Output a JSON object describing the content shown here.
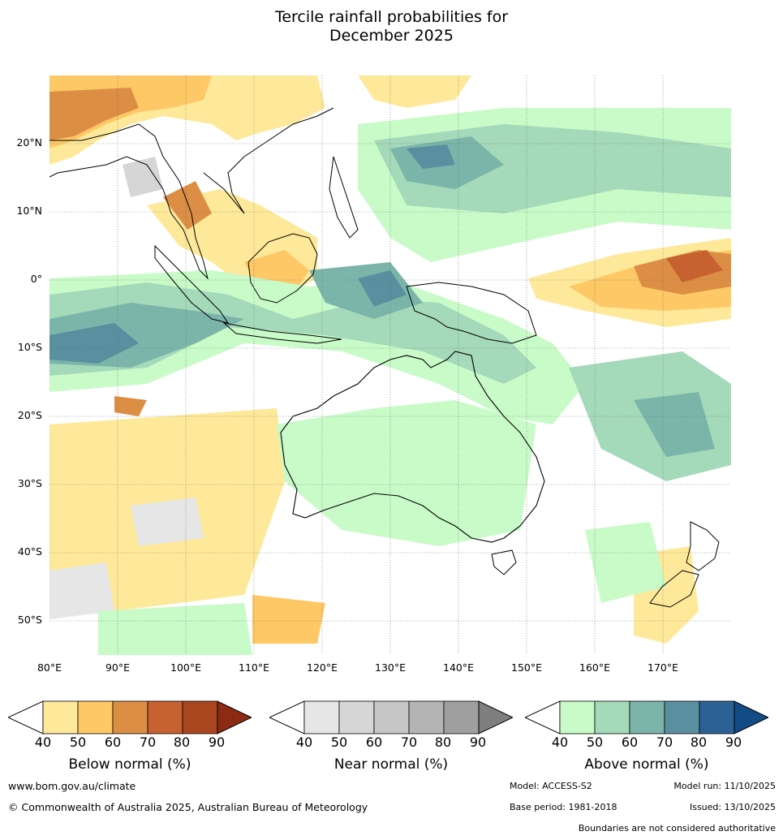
{
  "title_line1": "Tercile rainfall probabilities for",
  "title_line2": "December 2025",
  "lat_labels": [
    "20°N",
    "10°N",
    "0°",
    "10°S",
    "20°S",
    "30°S",
    "40°S",
    "50°S"
  ],
  "lon_labels": [
    "80°E",
    "90°E",
    "100°E",
    "110°E",
    "120°E",
    "130°E",
    "140°E",
    "150°E",
    "160°E",
    "170°E"
  ],
  "colorbars": [
    {
      "label": "Below normal (%)",
      "ticks": [
        "40",
        "50",
        "60",
        "70",
        "80",
        "90"
      ],
      "under": "#ffffff",
      "colors": [
        "#fee99a",
        "#fdc865",
        "#dc8e45",
        "#c7612f",
        "#a9451f"
      ],
      "over": "#8c2a14"
    },
    {
      "label": "Near normal (%)",
      "ticks": [
        "40",
        "50",
        "60",
        "70",
        "80",
        "90"
      ],
      "under": "#ffffff",
      "colors": [
        "#e6e6e6",
        "#d6d6d6",
        "#c6c6c6",
        "#b4b4b4",
        "#9f9f9f"
      ],
      "over": "#7f7f7f"
    },
    {
      "label": "Above normal (%)",
      "ticks": [
        "40",
        "50",
        "60",
        "70",
        "80",
        "90"
      ],
      "under": "#ffffff",
      "colors": [
        "#c8fbc8",
        "#a4d9b9",
        "#7bb5aa",
        "#598f9f",
        "#2c6196"
      ],
      "over": "#134b85"
    }
  ],
  "footer": {
    "website": "www.bom.gov.au/climate",
    "copyright": "© Commonwealth of Australia 2025, Australian Bureau of Meteorology",
    "model": "Model: ACCESS-S2",
    "model_run": "Model run: 11/10/2025",
    "base_period": "Base period: 1981-2018",
    "issued": "Issued: 13/10/2025",
    "disclaimer": "Boundaries are not considered authoritative"
  }
}
